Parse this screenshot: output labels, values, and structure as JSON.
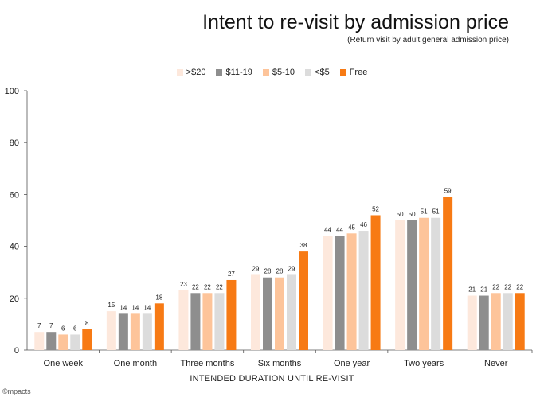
{
  "chart_data": {
    "type": "bar",
    "title": "Intent to re-visit by admission price",
    "subtitle": "(Return visit by adult general admission price)",
    "xlabel": "INTENDED DURATION UNTIL RE-VISIT",
    "ylabel": "",
    "ylim": [
      0,
      100
    ],
    "yticks": [
      0,
      20,
      40,
      60,
      80,
      100
    ],
    "grid": false,
    "legend_position": "top",
    "categories": [
      "One week",
      "One month",
      "Three months",
      "Six months",
      "One year",
      "Two years",
      "Never"
    ],
    "series": [
      {
        "name": ">$20",
        "color": "#fde8dc",
        "values": [
          7,
          15,
          23,
          29,
          44,
          50,
          21
        ]
      },
      {
        "name": "$11-19",
        "color": "#8e8e8e",
        "values": [
          7,
          14,
          22,
          28,
          44,
          50,
          21
        ]
      },
      {
        "name": "$5-10",
        "color": "#fdc49a",
        "values": [
          6,
          14,
          22,
          28,
          45,
          51,
          22
        ]
      },
      {
        "name": "<$5",
        "color": "#dcdcdc",
        "values": [
          6,
          14,
          22,
          29,
          46,
          51,
          22
        ]
      },
      {
        "name": "Free",
        "color": "#f77a14",
        "values": [
          8,
          18,
          27,
          38,
          52,
          59,
          22
        ]
      }
    ]
  },
  "brand": "©mpacts"
}
